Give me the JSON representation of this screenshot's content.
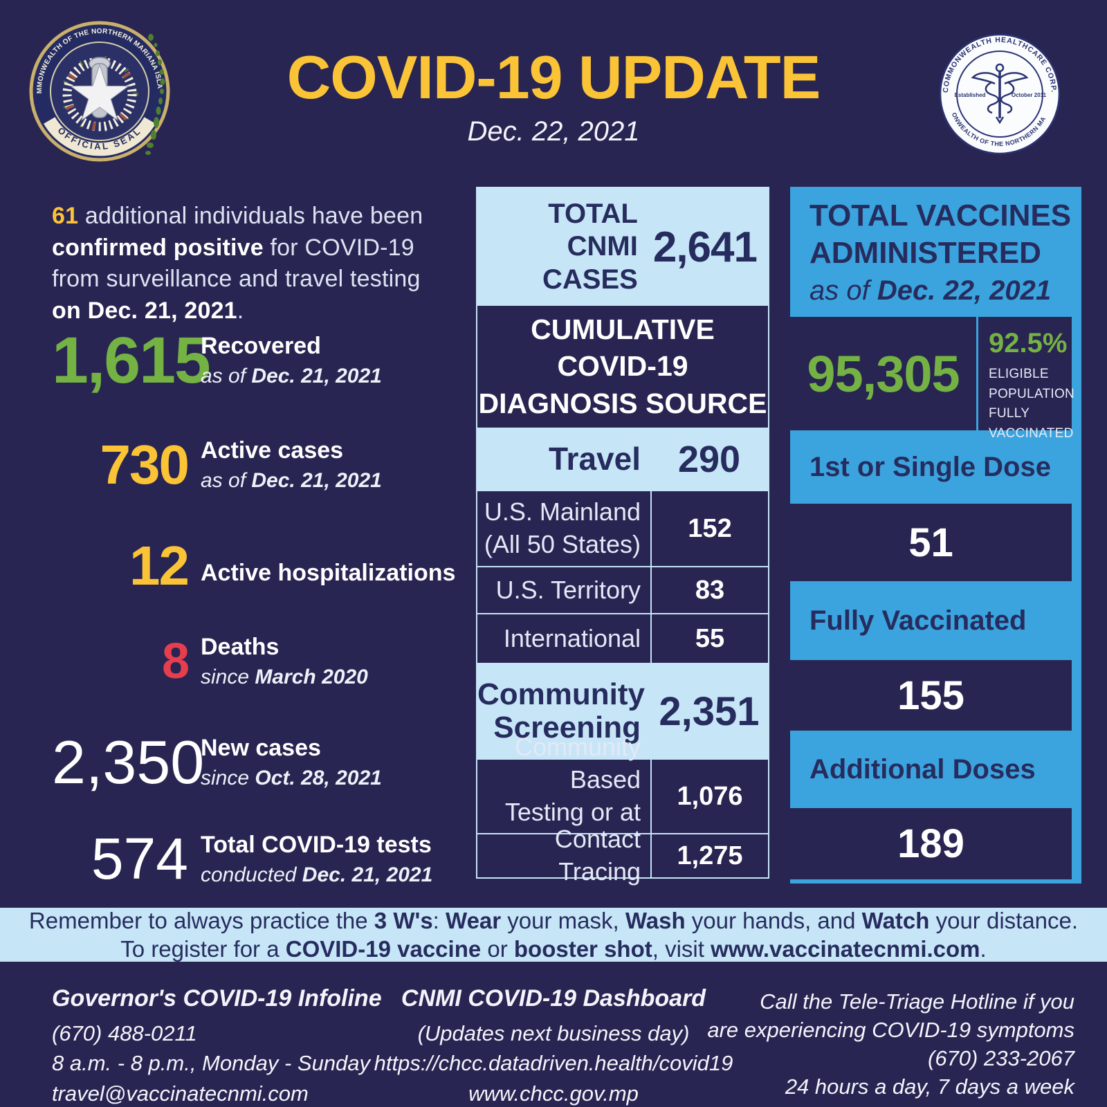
{
  "colors": {
    "navy": "#292552",
    "navy_text": "#272c5e",
    "light_blue": "#c6e5f7",
    "bright_blue": "#3ba4de",
    "yellow": "#fbc437",
    "green": "#74b244",
    "red": "#e73e4e"
  },
  "header": {
    "title": "COVID-19 UPDATE",
    "date": "Dec. 22, 2021"
  },
  "logos": {
    "seal_ring": "COMMONWEALTH OF THE NORTHERN MARIANA ISLANDS",
    "seal_banner": "OFFICIAL SEAL",
    "chcc_ring_top": "COMMONWEALTH HEALTHCARE CORP.",
    "chcc_ring_bottom": "COMMONWEALTH OF THE NORTHERN MARIANAS",
    "chcc_est_left": "Established",
    "chcc_est_right": "October 2011"
  },
  "intro": {
    "segments": [
      {
        "t": "61 ",
        "c": "y"
      },
      {
        "t": "additional individuals have been",
        "br": 1
      },
      {
        "t": "confirmed positive",
        "b": 1
      },
      {
        "t": " for COVID-19",
        "br": 1
      },
      {
        "t": "from surveillance and travel testing",
        "br": 1
      },
      {
        "t": "on Dec. 21, 2021",
        "b": 1
      },
      {
        "t": "."
      }
    ]
  },
  "stats": [
    {
      "value": "1,615",
      "label": "Recovered",
      "sub": [
        {
          "t": "as of "
        },
        {
          "t": "Dec. 21, 2021",
          "b": 1
        }
      ]
    },
    {
      "value": "730",
      "label": "Active cases",
      "sub": [
        {
          "t": "as of "
        },
        {
          "t": "Dec. 21, 2021",
          "b": 1
        }
      ]
    },
    {
      "value": "12",
      "label": "Active hospitalizations",
      "sub": null
    },
    {
      "value": "8",
      "label": "Deaths",
      "sub": [
        {
          "t": "since "
        },
        {
          "t": "March 2020",
          "b": 1
        }
      ]
    },
    {
      "value": "2,350",
      "label": "New cases",
      "sub": [
        {
          "t": "since "
        },
        {
          "t": "Oct. 28, 2021",
          "b": 1
        }
      ]
    },
    {
      "value": "574",
      "label": "Total COVID-19 tests",
      "sub": [
        {
          "t": "conducted "
        },
        {
          "t": "Dec. 21, 2021",
          "b": 1
        }
      ]
    }
  ],
  "cases_table": {
    "total_label_lines": [
      "TOTAL",
      "CNMI CASES"
    ],
    "total_value": "2,641",
    "section_lines": [
      "CUMULATIVE COVID-19",
      "DIAGNOSIS SOURCE"
    ],
    "travel_label": "Travel",
    "travel_value": "290",
    "travel_rows": [
      {
        "lines": [
          "U.S. Mainland",
          "(All 50 States)"
        ],
        "value": "152"
      },
      {
        "lines": [
          "U.S. Territory"
        ],
        "value": "83"
      },
      {
        "lines": [
          "International"
        ],
        "value": "55"
      }
    ],
    "community_label_lines": [
      "Community",
      "Screening"
    ],
    "community_value": "2,351",
    "community_rows": [
      {
        "lines": [
          "Community Based",
          "Testing or at CHCC"
        ],
        "value": "1,076"
      },
      {
        "lines": [
          "Contact Tracing"
        ],
        "value": "1,275"
      }
    ]
  },
  "vaccines": {
    "title_lines": [
      "TOTAL VACCINES",
      "ADMINISTERED"
    ],
    "as_of": [
      {
        "t": "as of "
      },
      {
        "t": "Dec. 22, 2021",
        "b": 1
      }
    ],
    "total": "95,305",
    "percent": "92.5%",
    "percent_lines": [
      "ELIGIBLE",
      "POPULATION",
      "FULLY",
      "VACCINATED"
    ],
    "rows": [
      {
        "label": "1st or Single Dose",
        "value": "51"
      },
      {
        "label": "Fully Vaccinated",
        "value": "155"
      },
      {
        "label": "Additional Doses",
        "value": "189"
      }
    ]
  },
  "reminder": {
    "line1": [
      {
        "t": "Remember to always practice the "
      },
      {
        "t": "3 W's",
        "b": 1
      },
      {
        "t": ": "
      },
      {
        "t": "Wear",
        "b": 1
      },
      {
        "t": " your mask, "
      },
      {
        "t": "Wash",
        "b": 1
      },
      {
        "t": " your hands, and "
      },
      {
        "t": "Watch",
        "b": 1
      },
      {
        "t": " your distance."
      }
    ],
    "line2": [
      {
        "t": "To register for a "
      },
      {
        "t": "COVID-19 vaccine",
        "b": 1
      },
      {
        "t": " or "
      },
      {
        "t": "booster shot",
        "b": 1
      },
      {
        "t": ", visit "
      },
      {
        "t": "www.vaccinatecnmi.com",
        "b": 1,
        "link": 1,
        "n": "vaccinate-link"
      },
      {
        "t": "."
      }
    ]
  },
  "footer": {
    "infoline": {
      "title": "Governor's COVID-19 Infoline",
      "lines": [
        "(670) 488-0211",
        "8 a.m. - 8 p.m., Monday - Sunday",
        "travel@vaccinatecnmi.com"
      ]
    },
    "dashboard": {
      "title": "CNMI COVID-19 Dashboard",
      "lines": [
        "(Updates next business day)",
        "https://chcc.datadriven.health/covid19",
        "www.chcc.gov.mp"
      ]
    },
    "hotline": {
      "line1": [
        {
          "t": "Call the "
        },
        {
          "t": "Tele-Triage Hotline",
          "b": 1
        },
        {
          "t": " if you"
        }
      ],
      "line2": "are experiencing COVID-19 symptoms",
      "line3": "(670) 233-2067",
      "line4": "24 hours a day, 7 days a week"
    }
  }
}
